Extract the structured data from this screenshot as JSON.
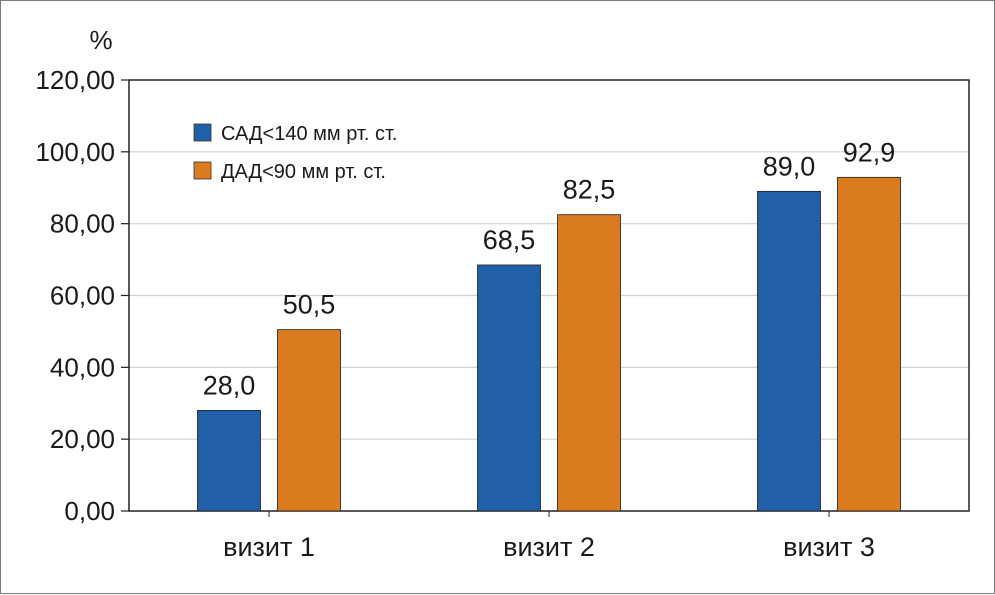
{
  "chart_data": {
    "type": "bar",
    "ylabel": "%",
    "ylim": [
      0,
      120
    ],
    "ytick_step": 20,
    "ytick_labels": [
      "0,00",
      "20,00",
      "40,00",
      "60,00",
      "80,00",
      "100,00",
      "120,00"
    ],
    "grid": true,
    "legend_position": "top-left",
    "categories": [
      "визит 1",
      "визит 2",
      "визит 3"
    ],
    "series": [
      {
        "name": "САД<140 мм рт. ст.",
        "color": "#2160a8",
        "values": [
          28.0,
          68.5,
          89.0
        ],
        "labels": [
          "28,0",
          "68,5",
          "89,0"
        ]
      },
      {
        "name": "ДАД<90 мм рт. ст.",
        "color": "#d97b1e",
        "values": [
          50.5,
          82.5,
          92.9
        ],
        "labels": [
          "50,5",
          "82,5",
          "92,9"
        ]
      }
    ]
  }
}
